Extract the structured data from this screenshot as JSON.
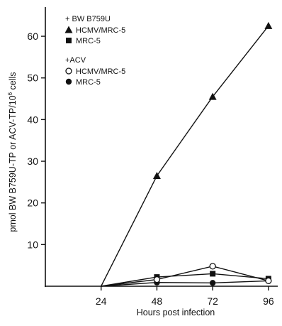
{
  "chart_data": {
    "type": "line",
    "x_label": "Hours post infection",
    "y_label_parts": [
      "pmol BW B759U-TP or ACV-TP/10",
      "6",
      " cells"
    ],
    "x_ticks": [
      24,
      48,
      72,
      96
    ],
    "y_ticks": [
      10,
      20,
      30,
      40,
      50,
      60
    ],
    "xlim": [
      0,
      100
    ],
    "ylim": [
      0,
      67
    ],
    "legend_groups": [
      {
        "header": "+ BW B759U",
        "entries": [
          {
            "label": "HCMV/MRC-5",
            "marker": "triangle",
            "series": 0
          },
          {
            "label": "MRC-5",
            "marker": "square",
            "series": 1
          }
        ]
      },
      {
        "header": "+ACV",
        "entries": [
          {
            "label": "HCMV/MRC-5",
            "marker": "circle-open",
            "series": 2
          },
          {
            "label": "MRC-5",
            "marker": "circle-filled",
            "series": 3
          }
        ]
      }
    ],
    "series": [
      {
        "name": "BW B759U HCMV/MRC-5",
        "marker": "triangle",
        "points": [
          [
            24,
            0
          ],
          [
            48,
            26.5
          ],
          [
            72,
            45.5
          ],
          [
            96,
            62.5
          ]
        ]
      },
      {
        "name": "BW B759U MRC-5",
        "marker": "square",
        "points": [
          [
            24,
            0
          ],
          [
            48,
            2.2
          ],
          [
            72,
            3.0
          ],
          [
            96,
            1.8
          ]
        ]
      },
      {
        "name": "ACV HCMV/MRC-5",
        "marker": "circle-open",
        "points": [
          [
            24,
            0
          ],
          [
            48,
            1.6
          ],
          [
            72,
            4.8
          ],
          [
            96,
            1.3
          ]
        ]
      },
      {
        "name": "ACV MRC-5",
        "marker": "circle-filled",
        "points": [
          [
            24,
            0
          ],
          [
            48,
            0.9
          ],
          [
            72,
            0.8
          ],
          [
            96,
            1.3
          ]
        ]
      }
    ]
  }
}
